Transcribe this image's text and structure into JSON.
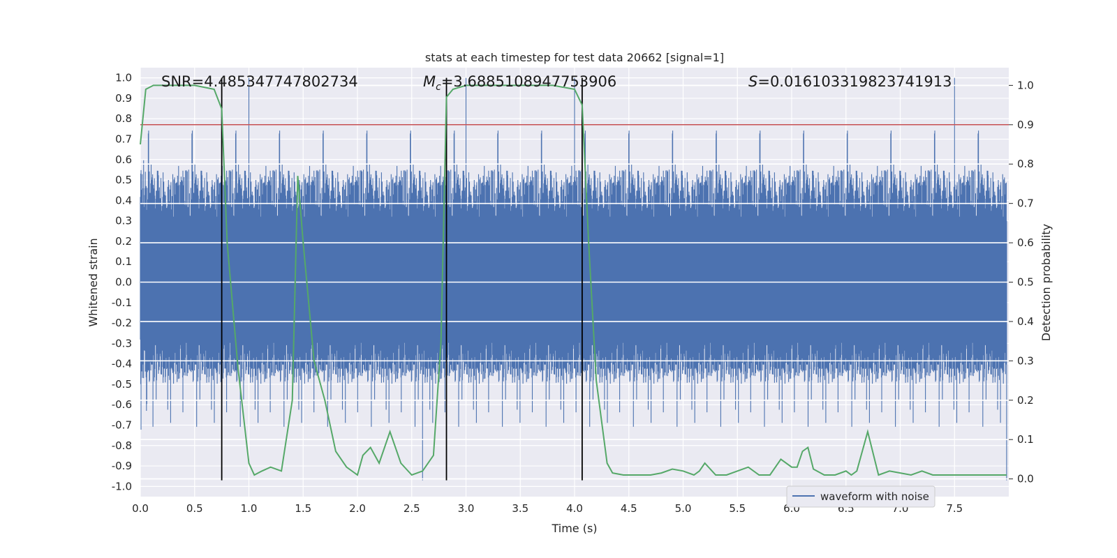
{
  "chart_data": {
    "type": "line",
    "title": "stats at each timestep for test data 20662 [signal=1]",
    "xlabel": "Time (s)",
    "ylabel": "Whitened strain",
    "y2label": "Detection probability",
    "xlim": [
      0.0,
      8.0
    ],
    "ylim": [
      -1.05,
      1.05
    ],
    "y2lim": [
      -0.045,
      1.045
    ],
    "x_ticks": [
      "0.0",
      "0.5",
      "1.0",
      "1.5",
      "2.0",
      "2.5",
      "3.0",
      "3.5",
      "4.0",
      "4.5",
      "5.0",
      "5.5",
      "6.0",
      "6.5",
      "7.0",
      "7.5"
    ],
    "y_ticks": [
      "-1.0",
      "-0.9",
      "-0.8",
      "-0.7",
      "-0.6",
      "-0.5",
      "-0.4",
      "-0.3",
      "-0.2",
      "-0.1",
      "0.0",
      "0.1",
      "0.2",
      "0.3",
      "0.4",
      "0.5",
      "0.6",
      "0.7",
      "0.8",
      "0.9",
      "1.0"
    ],
    "y2_ticks": [
      "0.0",
      "0.1",
      "0.2",
      "0.3",
      "0.4",
      "0.5",
      "0.6",
      "0.7",
      "0.8",
      "0.9",
      "1.0"
    ],
    "grid": true,
    "legend": {
      "placement": "lower-right",
      "entries": [
        "waveform with noise"
      ]
    },
    "threshold": {
      "axis": "y2",
      "value": 0.9,
      "color": "#c44e52"
    },
    "vlines": {
      "color": "#000000",
      "x": [
        0.75,
        2.82,
        4.07
      ],
      "ymin": -0.97,
      "ymax": 1.0
    },
    "annotations": {
      "snr": "SNR=4.485347747802734",
      "mc_symbol": "M",
      "mc_subscript": "c",
      "mc_value": "=3.6885108947753906",
      "s_symbol": "S",
      "s_value": "=0.016103319823741913"
    },
    "series": [
      {
        "name": "waveform with noise",
        "axis": "y",
        "color": "#4c72b0",
        "style": "dense-noise",
        "amplitude_range": [
          -0.97,
          1.0
        ],
        "typical_envelope": [
          -0.5,
          0.55
        ]
      },
      {
        "axis": "y2",
        "color": "#55a868",
        "x": [
          0.0,
          0.05,
          0.12,
          0.3,
          0.5,
          0.68,
          0.75,
          0.8,
          0.9,
          1.0,
          1.05,
          1.12,
          1.2,
          1.3,
          1.4,
          1.45,
          1.5,
          1.6,
          1.65,
          1.7,
          1.8,
          1.9,
          2.0,
          2.05,
          2.12,
          2.2,
          2.3,
          2.4,
          2.5,
          2.6,
          2.7,
          2.77,
          2.82,
          2.88,
          3.0,
          3.2,
          3.5,
          3.8,
          4.0,
          4.07,
          4.13,
          4.2,
          4.3,
          4.35,
          4.45,
          4.55,
          4.7,
          4.8,
          4.9,
          5.0,
          5.1,
          5.15,
          5.2,
          5.3,
          5.4,
          5.5,
          5.6,
          5.7,
          5.8,
          5.9,
          6.0,
          6.05,
          6.1,
          6.15,
          6.2,
          6.3,
          6.4,
          6.5,
          6.55,
          6.6,
          6.7,
          6.8,
          6.9,
          7.0,
          7.1,
          7.2,
          7.3,
          7.5,
          7.7,
          7.9,
          7.98
        ],
        "values": [
          0.85,
          0.99,
          1.0,
          1.0,
          1.0,
          0.99,
          0.94,
          0.6,
          0.28,
          0.04,
          0.01,
          0.02,
          0.03,
          0.02,
          0.2,
          0.77,
          0.6,
          0.3,
          0.25,
          0.2,
          0.07,
          0.03,
          0.01,
          0.06,
          0.08,
          0.04,
          0.12,
          0.04,
          0.01,
          0.02,
          0.06,
          0.35,
          0.97,
          0.99,
          1.0,
          1.0,
          1.0,
          1.0,
          0.99,
          0.95,
          0.6,
          0.25,
          0.04,
          0.015,
          0.01,
          0.01,
          0.01,
          0.015,
          0.025,
          0.02,
          0.01,
          0.02,
          0.04,
          0.01,
          0.01,
          0.02,
          0.03,
          0.01,
          0.01,
          0.05,
          0.03,
          0.03,
          0.07,
          0.08,
          0.025,
          0.01,
          0.01,
          0.02,
          0.01,
          0.02,
          0.12,
          0.01,
          0.02,
          0.015,
          0.01,
          0.02,
          0.01,
          0.01,
          0.01,
          0.01,
          0.01
        ]
      }
    ]
  }
}
